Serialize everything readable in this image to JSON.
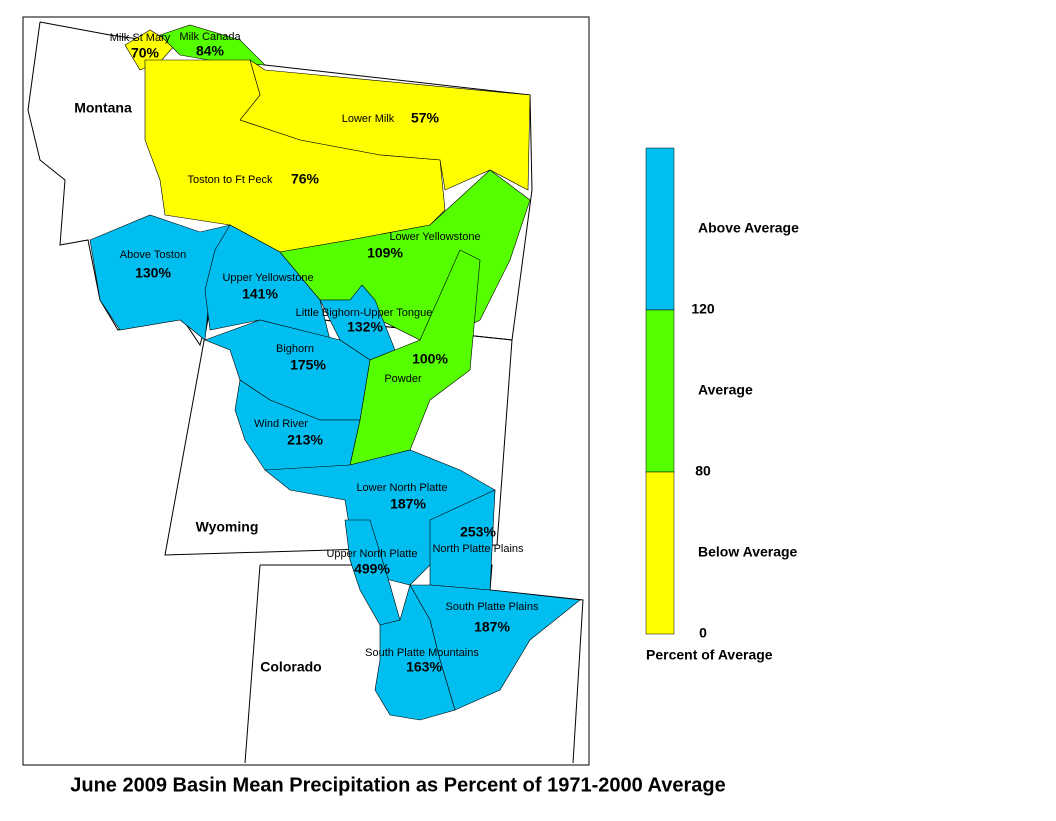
{
  "title": "June 2009 Basin Mean Precipitation as Percent of 1971-2000 Average",
  "states": [
    "Montana",
    "Wyoming",
    "Colorado"
  ],
  "basins": [
    {
      "name": "Milk St Mary",
      "value": "70%",
      "color": "#ffff00"
    },
    {
      "name": "Milk Canada",
      "value": "84%",
      "color": "#55ff00"
    },
    {
      "name": "Lower Milk",
      "value": "57%",
      "color": "#ffff00"
    },
    {
      "name": "Toston to Ft Peck",
      "value": "76%",
      "color": "#ffff00"
    },
    {
      "name": "Above Toston",
      "value": "130%",
      "color": "#00bff0"
    },
    {
      "name": "Upper Yellowstone",
      "value": "141%",
      "color": "#00bff0"
    },
    {
      "name": "Lower Yellowstone",
      "value": "109%",
      "color": "#55ff00"
    },
    {
      "name": "Little Bighorn-Upper Tongue",
      "value": "132%",
      "color": "#00bff0"
    },
    {
      "name": "Powder",
      "value": "100%",
      "color": "#55ff00"
    },
    {
      "name": "Bighorn",
      "value": "175%",
      "color": "#00bff0"
    },
    {
      "name": "Wind River",
      "value": "213%",
      "color": "#00bff0"
    },
    {
      "name": "Lower North Platte",
      "value": "187%",
      "color": "#00bff0"
    },
    {
      "name": "North Platte Plains",
      "value": "253%",
      "color": "#00bff0"
    },
    {
      "name": "Upper North Platte",
      "value": "499%",
      "color": "#00bff0"
    },
    {
      "name": "South Platte Plains",
      "value": "187%",
      "color": "#00bff0"
    },
    {
      "name": "South Platte Mountains",
      "value": "163%",
      "color": "#00bff0"
    }
  ],
  "legend": {
    "title": "Percent of Average",
    "classes": [
      {
        "label": "Above Average",
        "color": "#00bff0"
      },
      {
        "label": "Average",
        "color": "#55ff00"
      },
      {
        "label": "Below Average",
        "color": "#ffff00"
      }
    ],
    "breaks": [
      "120",
      "80",
      "0"
    ]
  }
}
